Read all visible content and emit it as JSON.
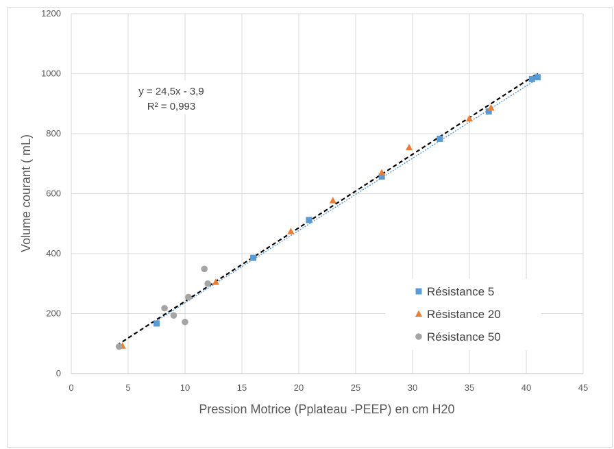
{
  "chart_data": {
    "type": "scatter",
    "xlabel": "Pression Motrice  (Pplateau -PEEP) en cm H20",
    "ylabel": "Volume courant ( mL)",
    "xlim": [
      0,
      45
    ],
    "ylim": [
      0,
      1200
    ],
    "xticks": [
      0,
      5,
      10,
      15,
      20,
      25,
      30,
      35,
      40,
      45
    ],
    "yticks": [
      0,
      200,
      400,
      600,
      800,
      1000,
      1200
    ],
    "grid": true,
    "legend_position": "bottom-right",
    "series": [
      {
        "name": "Résistance 5",
        "marker": "square",
        "color": "#5b9bd5",
        "points": [
          [
            7.5,
            167
          ],
          [
            16,
            386
          ],
          [
            20.9,
            512
          ],
          [
            27.3,
            657
          ],
          [
            32.4,
            783
          ],
          [
            36.7,
            874
          ],
          [
            40.5,
            982
          ],
          [
            41,
            988
          ]
        ]
      },
      {
        "name": "Résistance 20",
        "marker": "triangle",
        "color": "#ed7d31",
        "points": [
          [
            4.5,
            92
          ],
          [
            12.7,
            305
          ],
          [
            19.3,
            474
          ],
          [
            23,
            577
          ],
          [
            27.3,
            670
          ],
          [
            29.7,
            754
          ],
          [
            35,
            850
          ],
          [
            36.9,
            886
          ]
        ]
      },
      {
        "name": "Résistance 50",
        "marker": "circle",
        "color": "#a5a5a5",
        "points": [
          [
            4.2,
            90
          ],
          [
            8.2,
            218
          ],
          [
            9,
            194
          ],
          [
            10,
            172
          ],
          [
            10.3,
            255
          ],
          [
            11.7,
            349
          ],
          [
            12,
            300
          ]
        ]
      }
    ],
    "trendline": {
      "equation": "y = 24,5x - 3,9",
      "r2": "R² = 0,993",
      "slope": 24.5,
      "intercept": -3.9,
      "x_range": [
        4,
        41
      ],
      "color": "#000000",
      "style": "dashed"
    },
    "secondary_trendline": {
      "color": "#5b9bd5",
      "style": "dotted",
      "x_range": [
        7.5,
        41
      ],
      "slope": 24.1,
      "intercept": -5
    }
  }
}
